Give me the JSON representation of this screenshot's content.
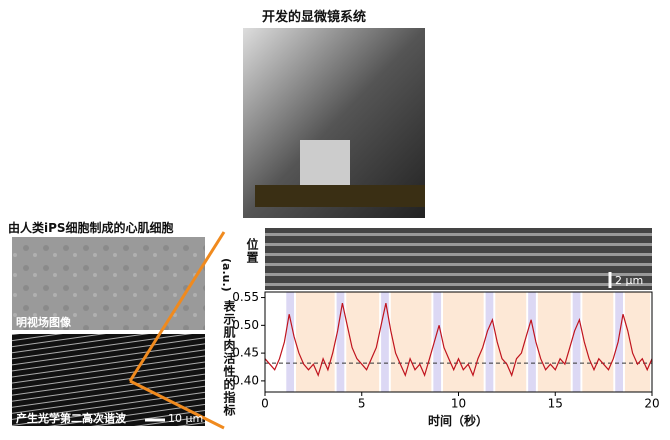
{
  "photo_title": "开发的显微镜系统",
  "cell_panel_title": "由人类iPS细胞制成的心肌细胞",
  "brightfield_label": "明视场图像",
  "shg_label": "产生光学第二高次谐波",
  "scale_bar_label": "10 μm",
  "kymograph_position_label": "位置",
  "kymograph_scale_label": "2 μm",
  "chart_data": {
    "type": "line",
    "y_label": "表示肌肉活性的指标",
    "y_unit": "(a.u.)",
    "x_label": "时间（秒）",
    "color": "#c0141e",
    "x": [
      0,
      0.25,
      0.5,
      0.75,
      1,
      1.25,
      1.5,
      1.75,
      2,
      2.25,
      2.5,
      2.75,
      3,
      3.25,
      3.5,
      3.75,
      4,
      4.25,
      4.5,
      4.75,
      5,
      5.25,
      5.5,
      5.75,
      6,
      6.25,
      6.5,
      6.75,
      7,
      7.25,
      7.5,
      7.75,
      8,
      8.25,
      8.5,
      8.75,
      9,
      9.25,
      9.5,
      9.75,
      10,
      10.25,
      10.5,
      10.75,
      11,
      11.25,
      11.5,
      11.75,
      12,
      12.25,
      12.5,
      12.75,
      13,
      13.25,
      13.5,
      13.75,
      14,
      14.25,
      14.5,
      14.75,
      15,
      15.25,
      15.5,
      15.75,
      16,
      16.25,
      16.5,
      16.75,
      17,
      17.25,
      17.5,
      17.75,
      18,
      18.25,
      18.5,
      18.75,
      19,
      19.25,
      19.5,
      19.75,
      20
    ],
    "values": [
      0.44,
      0.43,
      0.42,
      0.44,
      0.47,
      0.52,
      0.48,
      0.45,
      0.43,
      0.42,
      0.43,
      0.41,
      0.44,
      0.42,
      0.45,
      0.49,
      0.54,
      0.5,
      0.46,
      0.44,
      0.43,
      0.42,
      0.44,
      0.46,
      0.5,
      0.54,
      0.49,
      0.45,
      0.43,
      0.41,
      0.44,
      0.42,
      0.43,
      0.41,
      0.44,
      0.47,
      0.5,
      0.46,
      0.44,
      0.42,
      0.44,
      0.42,
      0.43,
      0.41,
      0.44,
      0.46,
      0.49,
      0.51,
      0.47,
      0.44,
      0.43,
      0.41,
      0.44,
      0.45,
      0.48,
      0.51,
      0.47,
      0.44,
      0.42,
      0.43,
      0.42,
      0.44,
      0.43,
      0.46,
      0.49,
      0.51,
      0.47,
      0.44,
      0.42,
      0.44,
      0.43,
      0.42,
      0.44,
      0.47,
      0.52,
      0.49,
      0.45,
      0.43,
      0.44,
      0.42,
      0.44
    ],
    "reference_line": 0.432,
    "peak_spans": [
      [
        1.1,
        1.5
      ],
      [
        3.7,
        4.1
      ],
      [
        6.0,
        6.4
      ],
      [
        8.7,
        9.1
      ],
      [
        11.4,
        11.8
      ],
      [
        13.6,
        14.0
      ],
      [
        15.9,
        16.3
      ],
      [
        18.1,
        18.5
      ]
    ],
    "peak_span_color": "#dcd8f4",
    "rest_spans": [
      [
        1.6,
        3.6
      ],
      [
        4.2,
        5.9
      ],
      [
        6.5,
        8.6
      ],
      [
        9.2,
        11.3
      ],
      [
        11.9,
        13.5
      ],
      [
        14.1,
        15.8
      ],
      [
        16.4,
        18.0
      ],
      [
        18.6,
        19.9
      ]
    ],
    "rest_span_color": "#fde8d6",
    "xlim": [
      0,
      20
    ],
    "xticks": [
      0,
      5,
      10,
      15,
      20
    ],
    "ylim": [
      0.38,
      0.56
    ],
    "yticks": [
      {
        "value": 0.4,
        "label": "0.40"
      },
      {
        "value": 0.45,
        "label": "0.45"
      },
      {
        "value": 0.5,
        "label": "0.50"
      },
      {
        "value": 0.55,
        "label": "0.55"
      }
    ]
  }
}
